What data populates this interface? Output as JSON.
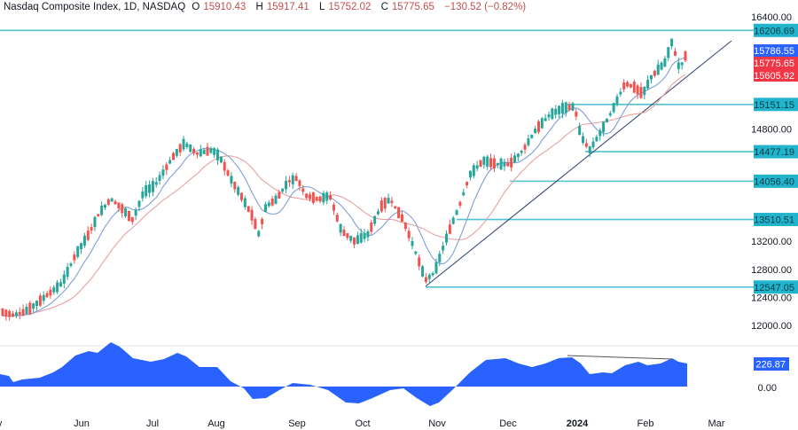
{
  "header": {
    "symbol": "Nasdaq Composite Index, 1D, NASDAQ",
    "open_label": "O",
    "open": "15910.43",
    "high_label": "H",
    "high": "15917.41",
    "low_label": "L",
    "low": "15752.02",
    "close_label": "C",
    "close": "15775.65",
    "change": "−130.52 (−0.82%)"
  },
  "colors": {
    "up": "#26a69a",
    "up_dark": "#1e8c7a",
    "down": "#ef5350",
    "down_dark": "#d63a44",
    "ma_fast": "#7f9fd6",
    "ma_slow": "#e8a0a0",
    "trendline": "#3a4a7a",
    "level": "#4fc3cf",
    "level_tag": "#22b4cc",
    "oscillator": "#2962ff",
    "tag_blue": "#2962ff",
    "tag_red": "#f23645"
  },
  "price_axis": {
    "ticks": [
      "16400.00",
      "14800.00",
      "13200.00",
      "12800.00",
      "12400.00",
      "12000.00"
    ],
    "tick_values": [
      16400,
      14800,
      13200,
      12800,
      12400,
      12000
    ]
  },
  "level_tags": [
    {
      "label": "16206.69",
      "value": 16206.69
    },
    {
      "label": "15151.15",
      "value": 15151.15
    },
    {
      "label": "14477.19",
      "value": 14477.19
    },
    {
      "label": "14056.40",
      "value": 14056.4
    },
    {
      "label": "13510.51",
      "value": 13510.51
    },
    {
      "label": "12547.05",
      "value": 12547.05
    }
  ],
  "price_tags": [
    {
      "label": "15786.55",
      "kind": "ma_fast",
      "color": "#2962ff"
    },
    {
      "label": "15775.65",
      "kind": "last_close",
      "color": "#f23645"
    },
    {
      "label": "15605.92",
      "kind": "ma_slow",
      "color": "#f23645"
    }
  ],
  "oscillator": {
    "value_tag": "226.87",
    "zero_label": "0.00"
  },
  "time_axis": {
    "labels": [
      {
        "text": "May",
        "bold": false
      },
      {
        "text": "Jun",
        "bold": false
      },
      {
        "text": "Jul",
        "bold": false
      },
      {
        "text": "Aug",
        "bold": false
      },
      {
        "text": "Sep",
        "bold": false
      },
      {
        "text": "Oct",
        "bold": false
      },
      {
        "text": "Nov",
        "bold": false
      },
      {
        "text": "Dec",
        "bold": false
      },
      {
        "text": "2024",
        "bold": true
      },
      {
        "text": "Feb",
        "bold": false
      },
      {
        "text": "Mar",
        "bold": false
      }
    ]
  },
  "chart_data": {
    "type": "candlestick",
    "title": "Nasdaq Composite Index, 1D, NASDAQ",
    "xlabel": "",
    "ylabel": "",
    "x_range": [
      "May 2023",
      "Mar 2024"
    ],
    "ylim": [
      11900,
      16500
    ],
    "grid": false,
    "last_bar": {
      "open": 15910.43,
      "high": 15917.41,
      "low": 15752.02,
      "close": 15775.65,
      "change": -130.52,
      "change_pct": -0.82
    },
    "horizontal_levels": [
      16206.69,
      15151.15,
      14477.19,
      14056.4,
      13510.51,
      12547.05
    ],
    "moving_averages": [
      {
        "name": "fast MA",
        "last": 15786.55
      },
      {
        "name": "slow MA",
        "last": 15605.92
      }
    ],
    "trendline": {
      "from": {
        "date": "late Oct 2023",
        "price": 12547.05
      },
      "to": {
        "date": "late Feb 2024",
        "price": 16150
      }
    },
    "monthly_approx_close": {
      "categories": [
        "May",
        "Jun",
        "Jul",
        "Aug",
        "Sep",
        "Oct",
        "Nov",
        "Dec",
        "Jan",
        "Feb"
      ],
      "values": [
        12100,
        13500,
        14300,
        13900,
        13600,
        12900,
        13500,
        14800,
        15150,
        15800
      ]
    },
    "oscillator": {
      "type": "area",
      "last_value": 226.87,
      "zero_line": 0,
      "divergence_line": "drawn from late-Dec peak to mid-Feb peak (lower high)"
    }
  }
}
